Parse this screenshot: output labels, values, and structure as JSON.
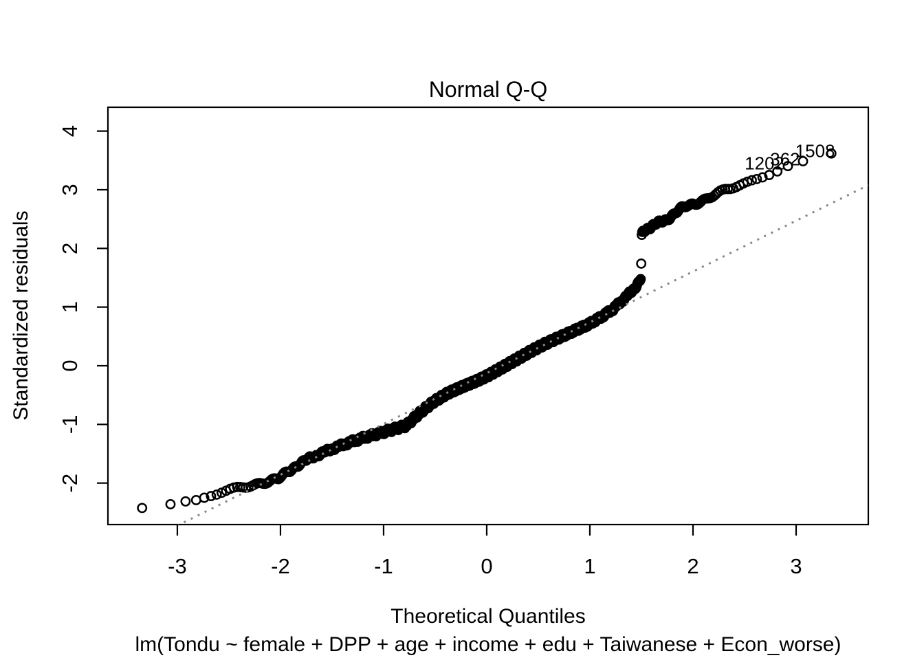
{
  "chart_data": {
    "type": "scatter",
    "title": "Normal Q-Q",
    "xlabel": "Theoretical Quantiles",
    "ylabel": "Standardized residuals",
    "subtitle": "lm(Tondu ~ female + DPP + age + income + edu + Taiwanese + Econ_worse)",
    "x_ticks": [
      -3,
      -2,
      -1,
      0,
      1,
      2,
      3
    ],
    "y_ticks": [
      -2,
      -1,
      0,
      1,
      2,
      3,
      4
    ],
    "xlim": [
      -3.673,
      3.7
    ],
    "ylim": [
      -2.707,
      4.406
    ],
    "grid": false,
    "legend": "none",
    "point_marker": "open-circle",
    "point_color": "#000000",
    "n_points": 1500,
    "lower_branch_count": 1399,
    "upper_branch_count": 100,
    "lower_branch_curve": [
      [
        -3.5,
        -2.47
      ],
      [
        -3.1,
        -2.4
      ],
      [
        -2.95,
        -2.35
      ],
      [
        -2.82,
        -2.31
      ],
      [
        -2.7,
        -2.23
      ],
      [
        -2.56,
        -2.16
      ],
      [
        -2.42,
        -2.09
      ],
      [
        -2.28,
        -2.03
      ],
      [
        -2.14,
        -1.98
      ],
      [
        -2.02,
        -1.93
      ],
      [
        -1.94,
        -1.82
      ],
      [
        -1.84,
        -1.7
      ],
      [
        -1.72,
        -1.58
      ],
      [
        -1.6,
        -1.49
      ],
      [
        -1.46,
        -1.39
      ],
      [
        -1.32,
        -1.3
      ],
      [
        -1.18,
        -1.22
      ],
      [
        -1.04,
        -1.15
      ],
      [
        -0.9,
        -1.08
      ],
      [
        -0.78,
        -1.02
      ],
      [
        -0.66,
        -0.82
      ],
      [
        -0.52,
        -0.62
      ],
      [
        -0.38,
        -0.47
      ],
      [
        -0.24,
        -0.36
      ],
      [
        -0.1,
        -0.26
      ],
      [
        0.02,
        -0.16
      ],
      [
        0.14,
        -0.04
      ],
      [
        0.28,
        0.1
      ],
      [
        0.42,
        0.24
      ],
      [
        0.56,
        0.37
      ],
      [
        0.7,
        0.48
      ],
      [
        0.84,
        0.59
      ],
      [
        0.98,
        0.7
      ],
      [
        1.1,
        0.82
      ],
      [
        1.22,
        0.96
      ],
      [
        1.32,
        1.12
      ],
      [
        1.4,
        1.26
      ],
      [
        1.46,
        1.38
      ],
      [
        1.5,
        1.5
      ]
    ],
    "gap_point": [
      1.499,
      1.73
    ],
    "upper_branch_curve": [
      [
        1.5,
        2.18
      ],
      [
        1.51,
        2.26
      ],
      [
        1.54,
        2.32
      ],
      [
        1.6,
        2.38
      ],
      [
        1.67,
        2.44
      ],
      [
        1.74,
        2.49
      ],
      [
        1.81,
        2.57
      ],
      [
        1.88,
        2.67
      ],
      [
        1.94,
        2.73
      ],
      [
        2.02,
        2.77
      ],
      [
        2.12,
        2.83
      ],
      [
        2.22,
        2.91
      ],
      [
        2.32,
        3.0
      ],
      [
        2.42,
        3.06
      ],
      [
        2.52,
        3.12
      ],
      [
        2.62,
        3.19
      ],
      [
        2.72,
        3.27
      ],
      [
        2.82,
        3.35
      ],
      [
        2.9,
        3.42
      ],
      [
        2.98,
        3.46
      ],
      [
        3.12,
        3.52
      ],
      [
        3.48,
        3.67
      ]
    ],
    "reference_line": {
      "slope": 0.866,
      "intercept": -0.126,
      "style": "dotted",
      "color": "#878787"
    },
    "outlier_labels": [
      {
        "label": "1508",
        "x": 3.45,
        "y": 3.66
      },
      {
        "label": "362",
        "x": 3.11,
        "y": 3.52
      },
      {
        "label": "1202",
        "x": 2.96,
        "y": 3.45
      }
    ]
  }
}
